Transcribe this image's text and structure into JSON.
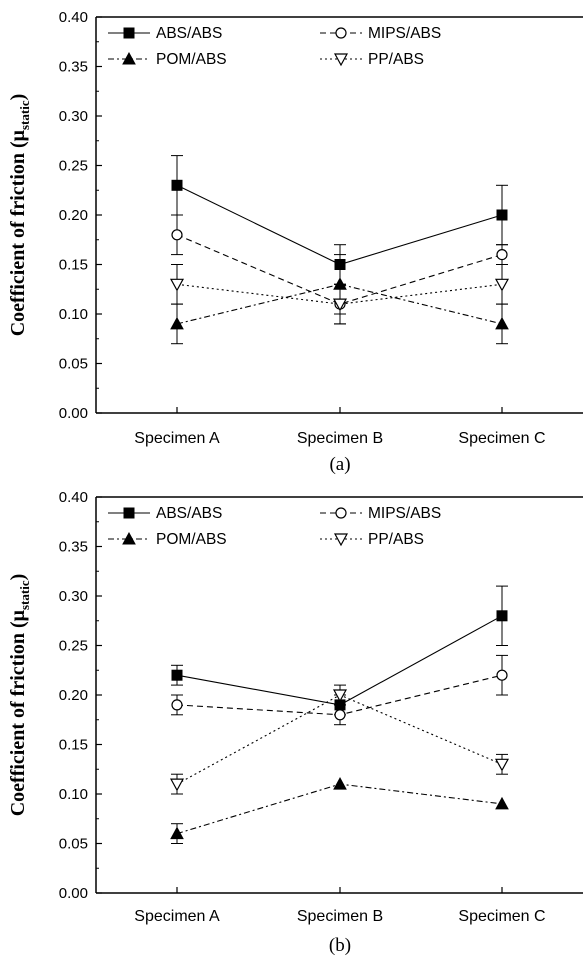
{
  "chart_data": [
    {
      "type": "line",
      "caption": "(a)",
      "ylabel": "Coefficient of friction (μ",
      "ylabel_sub": "static",
      "ylabel_close": ")",
      "categories": [
        "Specimen A",
        "Specimen B",
        "Specimen C"
      ],
      "ylim": [
        0,
        0.4
      ],
      "yticks": [
        "0.00",
        "0.05",
        "0.10",
        "0.15",
        "0.20",
        "0.25",
        "0.30",
        "0.35",
        "0.40"
      ],
      "grid": false,
      "legend_position": "top",
      "series": [
        {
          "name": "ABS/ABS",
          "marker": "square-filled",
          "line": "solid",
          "values": [
            0.23,
            0.15,
            0.2
          ],
          "errors": [
            0.03,
            0.02,
            0.03
          ]
        },
        {
          "name": "MIPS/ABS",
          "marker": "circle-open",
          "line": "dashed",
          "values": [
            0.18,
            0.11,
            0.16
          ],
          "errors": [
            0.02,
            0.02,
            0.01
          ]
        },
        {
          "name": "POM/ABS",
          "marker": "triangle-filled",
          "line": "dashdot",
          "values": [
            0.09,
            0.13,
            0.09
          ],
          "errors": [
            0.02,
            0.03,
            0.02
          ]
        },
        {
          "name": "PP/ABS",
          "marker": "triangle-down-open",
          "line": "dotted",
          "values": [
            0.13,
            0.11,
            0.13
          ],
          "errors": [
            0.02,
            0.02,
            0.02
          ]
        }
      ]
    },
    {
      "type": "line",
      "caption": "(b)",
      "ylabel": "Coefficient of friction (μ",
      "ylabel_sub": "static",
      "ylabel_close": ")",
      "categories": [
        "Specimen A",
        "Specimen B",
        "Specimen C"
      ],
      "ylim": [
        0,
        0.4
      ],
      "yticks": [
        "0.00",
        "0.05",
        "0.10",
        "0.15",
        "0.20",
        "0.25",
        "0.30",
        "0.35",
        "0.40"
      ],
      "grid": false,
      "legend_position": "top",
      "series": [
        {
          "name": "ABS/ABS",
          "marker": "square-filled",
          "line": "solid",
          "values": [
            0.22,
            0.19,
            0.28
          ],
          "errors": [
            0.01,
            0.01,
            0.03
          ]
        },
        {
          "name": "MIPS/ABS",
          "marker": "circle-open",
          "line": "dashed",
          "values": [
            0.19,
            0.18,
            0.22
          ],
          "errors": [
            0.01,
            0.01,
            0.02
          ]
        },
        {
          "name": "POM/ABS",
          "marker": "triangle-filled",
          "line": "dashdot",
          "values": [
            0.06,
            0.11,
            0.09
          ],
          "errors": [
            0.01,
            0.0,
            0.0
          ]
        },
        {
          "name": "PP/ABS",
          "marker": "triangle-down-open",
          "line": "dotted",
          "values": [
            0.11,
            0.2,
            0.13
          ],
          "errors": [
            0.01,
            0.01,
            0.01
          ]
        }
      ]
    }
  ]
}
